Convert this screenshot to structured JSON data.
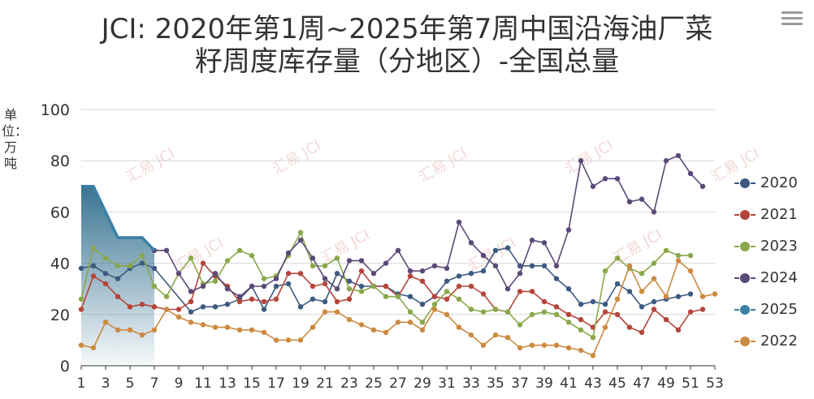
{
  "title_line1": "JCI: 2020年第1周~2025年第7周中国沿海油厂菜",
  "title_line2": "籽周度库存量（分地区）-全国总量",
  "ylabel": "单位：万吨",
  "menu_icon": "hamburger-menu-icon",
  "watermark": "汇易 JCI",
  "chart_data": {
    "type": "line",
    "title": "JCI: 2020年第1周~2025年第7周中国沿海油厂菜籽周度库存量（分地区）-全国总量",
    "ylabel": "单位：万吨",
    "ylim": [
      0,
      100
    ],
    "yticks": [
      "0",
      "20",
      "40",
      "60",
      "80",
      "100"
    ],
    "x": [
      1,
      2,
      3,
      4,
      5,
      6,
      7,
      8,
      9,
      10,
      11,
      12,
      13,
      14,
      15,
      16,
      17,
      18,
      19,
      20,
      21,
      22,
      23,
      24,
      25,
      26,
      27,
      28,
      29,
      30,
      31,
      32,
      33,
      34,
      35,
      36,
      37,
      38,
      39,
      40,
      41,
      42,
      43,
      44,
      45,
      46,
      47,
      48,
      49,
      50,
      51,
      52,
      53
    ],
    "xticks": [
      "1",
      "3",
      "5",
      "7",
      "9",
      "11",
      "13",
      "15",
      "17",
      "19",
      "21",
      "23",
      "25",
      "27",
      "29",
      "31",
      "33",
      "35",
      "37",
      "39",
      "41",
      "43",
      "45",
      "47",
      "49",
      "51",
      "53"
    ],
    "grid": true,
    "legend_position": "right",
    "series": [
      {
        "name": "2020",
        "color": "#3d5a80",
        "values": [
          38,
          39,
          36,
          34,
          38,
          40,
          38,
          null,
          null,
          21,
          23,
          23,
          24,
          26,
          31,
          22,
          31,
          32,
          23,
          26,
          25,
          36,
          33,
          31,
          31,
          31,
          28,
          27,
          24,
          27,
          33,
          35,
          36,
          37,
          45,
          46,
          39,
          39,
          39,
          34,
          30,
          24,
          25,
          24,
          32,
          29,
          23,
          25,
          26,
          27,
          28,
          null,
          null
        ]
      },
      {
        "name": "2021",
        "color": "#b5453b",
        "values": [
          22,
          35,
          32,
          27,
          23,
          24,
          23,
          22,
          22,
          25,
          40,
          35,
          31,
          25,
          26,
          25,
          26,
          36,
          36,
          31,
          32,
          25,
          26,
          37,
          31,
          31,
          27,
          35,
          33,
          27,
          26,
          31,
          31,
          28,
          22,
          21,
          29,
          29,
          25,
          23,
          20,
          18,
          15,
          21,
          20,
          15,
          13,
          22,
          18,
          14,
          21,
          22,
          null
        ]
      },
      {
        "name": "2023",
        "color": "#8aa84a",
        "values": [
          26,
          46,
          42,
          39,
          39,
          43,
          31,
          27,
          36,
          42,
          32,
          33,
          41,
          45,
          43,
          34,
          35,
          43,
          52,
          39,
          39,
          42,
          30,
          29,
          31,
          27,
          27,
          21,
          17,
          24,
          29,
          26,
          22,
          21,
          22,
          21,
          16,
          20,
          21,
          20,
          17,
          14,
          11,
          37,
          42,
          38,
          36,
          40,
          45,
          43,
          43,
          null,
          null
        ]
      },
      {
        "name": "2024",
        "color": "#5b4a78",
        "values": [
          null,
          null,
          null,
          null,
          null,
          null,
          45,
          45,
          36,
          29,
          31,
          36,
          30,
          27,
          31,
          31,
          34,
          44,
          49,
          42,
          34,
          30,
          41,
          41,
          36,
          40,
          45,
          37,
          37,
          39,
          38,
          56,
          48,
          43,
          39,
          30,
          36,
          49,
          48,
          39,
          53,
          80,
          70,
          73,
          73,
          64,
          65,
          60,
          80,
          82,
          75,
          70,
          null
        ]
      },
      {
        "name": "2025",
        "color": "#3a7fa8",
        "values": [
          70,
          70,
          60,
          50,
          50,
          50,
          45,
          null,
          null,
          null,
          null,
          null,
          null,
          null,
          null,
          null,
          null,
          null,
          null,
          null,
          null,
          null,
          null,
          null,
          null,
          null,
          null,
          null,
          null,
          null,
          null,
          null,
          null,
          null,
          null,
          null,
          null,
          null,
          null,
          null,
          null,
          null,
          null,
          null,
          null,
          null,
          null,
          null,
          null,
          null,
          null,
          null,
          null
        ]
      },
      {
        "name": "2022",
        "color": "#cc8a40",
        "values": [
          8,
          7,
          17,
          14,
          14,
          12,
          14,
          22,
          19,
          17,
          16,
          15,
          15,
          14,
          14,
          13,
          10,
          10,
          10,
          15,
          21,
          21,
          18,
          16,
          14,
          13,
          17,
          17,
          14,
          22,
          20,
          15,
          12,
          8,
          12,
          11,
          7,
          8,
          8,
          8,
          7,
          6,
          4,
          15,
          26,
          39,
          29,
          34,
          27,
          41,
          37,
          27,
          28
        ]
      }
    ]
  },
  "legend": [
    {
      "name": "2020",
      "color": "#3d5a80"
    },
    {
      "name": "2021",
      "color": "#b5453b"
    },
    {
      "name": "2023",
      "color": "#8aa84a"
    },
    {
      "name": "2024",
      "color": "#5b4a78"
    },
    {
      "name": "2025",
      "color": "#3a7fa8"
    },
    {
      "name": "2022",
      "color": "#cc8a40"
    }
  ]
}
